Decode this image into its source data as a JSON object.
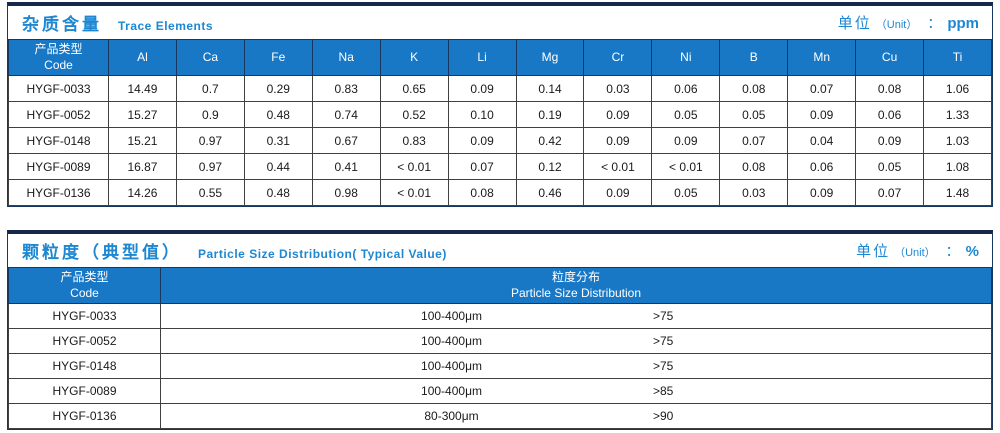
{
  "colors": {
    "header_bg": "#1878C6",
    "accent_blue": "#1E87D2",
    "outer_border": "#17375E",
    "grid_line": "#404040"
  },
  "trace_table": {
    "title_zh": "杂质含量",
    "title_en": "Trace Elements",
    "unit_label": "单位",
    "unit_paren": "（Unit）",
    "unit_colon": "：",
    "unit_value": "ppm",
    "header": {
      "code_zh": "产品类型",
      "code_en": "Code",
      "elements": [
        "Al",
        "Ca",
        "Fe",
        "Na",
        "K",
        "Li",
        "Mg",
        "Cr",
        "Ni",
        "B",
        "Mn",
        "Cu",
        "Ti"
      ]
    },
    "rows": [
      {
        "code": "HYGF-0033",
        "values": [
          "14.49",
          "0.7",
          "0.29",
          "0.83",
          "0.65",
          "0.09",
          "0.14",
          "0.03",
          "0.06",
          "0.08",
          "0.07",
          "0.08",
          "1.06"
        ]
      },
      {
        "code": "HYGF-0052",
        "values": [
          "15.27",
          "0.9",
          "0.48",
          "0.74",
          "0.52",
          "0.10",
          "0.19",
          "0.09",
          "0.05",
          "0.05",
          "0.09",
          "0.06",
          "1.33"
        ]
      },
      {
        "code": "HYGF-0148",
        "values": [
          "15.21",
          "0.97",
          "0.31",
          "0.67",
          "0.83",
          "0.09",
          "0.42",
          "0.09",
          "0.09",
          "0.07",
          "0.04",
          "0.09",
          "1.03"
        ]
      },
      {
        "code": "HYGF-0089",
        "values": [
          "16.87",
          "0.97",
          "0.44",
          "0.41",
          "< 0.01",
          "0.07",
          "0.12",
          "< 0.01",
          "< 0.01",
          "0.08",
          "0.06",
          "0.05",
          "1.08"
        ]
      },
      {
        "code": "HYGF-0136",
        "values": [
          "14.26",
          "0.55",
          "0.48",
          "0.98",
          "< 0.01",
          "0.08",
          "0.46",
          "0.09",
          "0.05",
          "0.03",
          "0.09",
          "0.07",
          "1.48"
        ]
      }
    ]
  },
  "particle_table": {
    "title_zh": "颗粒度（典型值）",
    "title_en": "Particle Size Distribution( Typical Value)",
    "unit_label": "单位",
    "unit_paren": "（Unit）",
    "unit_colon": "：",
    "unit_value": "%",
    "header": {
      "code_zh": "产品类型",
      "code_en": "Code",
      "dist_zh": "粒度分布",
      "dist_en": "Particle Size  Distribution"
    },
    "rows": [
      {
        "code": "HYGF-0033",
        "range": "100-400μm",
        "percent": ">75"
      },
      {
        "code": "HYGF-0052",
        "range": "100-400μm",
        "percent": ">75"
      },
      {
        "code": "HYGF-0148",
        "range": "100-400μm",
        "percent": ">75"
      },
      {
        "code": "HYGF-0089",
        "range": "100-400μm",
        "percent": ">85"
      },
      {
        "code": "HYGF-0136",
        "range": "80-300μm",
        "percent": ">90"
      }
    ]
  }
}
